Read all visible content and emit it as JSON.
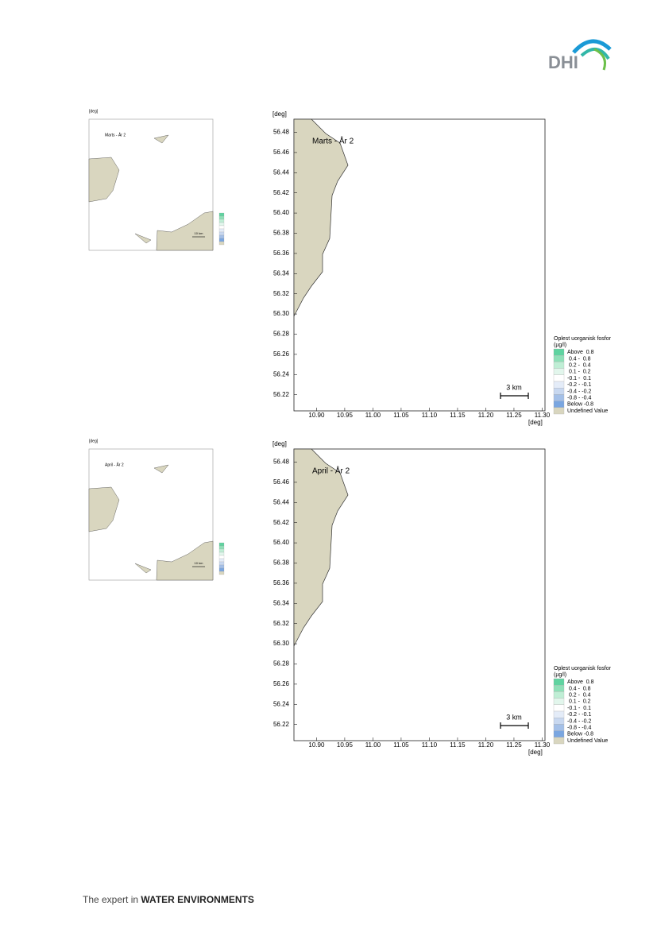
{
  "header": {
    "logo": "DHI"
  },
  "figures": [
    {
      "overview": {
        "title": "Marts - År 2",
        "axis_unit": "[deg]",
        "scale": "10 km"
      },
      "map": {
        "title": "Marts - År 2",
        "x_unit": "[deg]",
        "y_unit": "[deg]",
        "xlim": [
          10.86,
          11.305
        ],
        "ylim": [
          56.204,
          56.493
        ],
        "xticks": [
          {
            "value": 10.9,
            "label": "10.90"
          },
          10.95,
          {
            "value": 11.0,
            "label": "11.00"
          },
          11.05,
          {
            "value": 11.1,
            "label": "11.10"
          },
          11.15,
          {
            "value": 11.2,
            "label": "11.20"
          },
          11.25,
          {
            "value": 11.3,
            "label": "11.30"
          }
        ],
        "yticks": [
          56.22,
          56.24,
          56.26,
          56.28,
          {
            "value": 56.3,
            "label": "56.30"
          },
          56.32,
          56.34,
          56.36,
          56.38,
          {
            "value": 56.4,
            "label": "56.40"
          },
          56.42,
          56.44,
          56.46,
          56.48
        ],
        "scale": "3 km"
      },
      "legend": {
        "title": "Oplest uorganisk fosfor",
        "unit": "(µg/l)",
        "items": [
          {
            "label": "Above  0.8",
            "color": "#5fd3a0"
          },
          {
            "label": " 0.4 -  0.8",
            "color": "#8fe0b8"
          },
          {
            "label": " 0.2 -  0.4",
            "color": "#bfeed5"
          },
          {
            "label": " 0.1 -  0.2",
            "color": "#e2f6ec"
          },
          {
            "label": "-0.1 -  0.1",
            "color": "#ffffff"
          },
          {
            "label": "-0.2 - -0.1",
            "color": "#e4ecf8"
          },
          {
            "label": "-0.4 - -0.2",
            "color": "#c8d8f0"
          },
          {
            "label": "-0.8 - -0.4",
            "color": "#a4c0e8"
          },
          {
            "label": "Below -0.8",
            "color": "#7aa6e0"
          },
          {
            "label": "Undefined Value",
            "color": "#d9d6bf"
          }
        ]
      }
    },
    {
      "overview": {
        "title": "April - År 2",
        "axis_unit": "[deg]",
        "scale": "10 km"
      },
      "map": {
        "title": "April - År 2",
        "x_unit": "[deg]",
        "y_unit": "[deg]",
        "xlim": [
          10.86,
          11.305
        ],
        "ylim": [
          56.204,
          56.493
        ],
        "xticks": [
          {
            "value": 10.9,
            "label": "10.90"
          },
          10.95,
          {
            "value": 11.0,
            "label": "11.00"
          },
          11.05,
          {
            "value": 11.1,
            "label": "11.10"
          },
          11.15,
          {
            "value": 11.2,
            "label": "11.20"
          },
          11.25,
          {
            "value": 11.3,
            "label": "11.30"
          }
        ],
        "yticks": [
          56.22,
          56.24,
          56.26,
          56.28,
          {
            "value": 56.3,
            "label": "56.30"
          },
          56.32,
          56.34,
          56.36,
          56.38,
          {
            "value": 56.4,
            "label": "56.40"
          },
          56.42,
          56.44,
          56.46,
          56.48
        ],
        "scale": "3 km"
      },
      "legend": {
        "title": "Oplest uorganisk fosfor",
        "unit": "(µg/l)",
        "items": [
          {
            "label": "Above  0.8",
            "color": "#5fd3a0"
          },
          {
            "label": " 0.4 -  0.8",
            "color": "#8fe0b8"
          },
          {
            "label": " 0.2 -  0.4",
            "color": "#bfeed5"
          },
          {
            "label": " 0.1 -  0.2",
            "color": "#e2f6ec"
          },
          {
            "label": "-0.1 -  0.1",
            "color": "#ffffff"
          },
          {
            "label": "-0.2 - -0.1",
            "color": "#e4ecf8"
          },
          {
            "label": "-0.4 - -0.2",
            "color": "#c8d8f0"
          },
          {
            "label": "-0.8 - -0.4",
            "color": "#a4c0e8"
          },
          {
            "label": "Below -0.8",
            "color": "#7aa6e0"
          },
          {
            "label": "Undefined Value",
            "color": "#d9d6bf"
          }
        ]
      }
    }
  ],
  "footer": {
    "text": "The expert in",
    "emphasis": "WATER ENVIRONMENTS"
  }
}
